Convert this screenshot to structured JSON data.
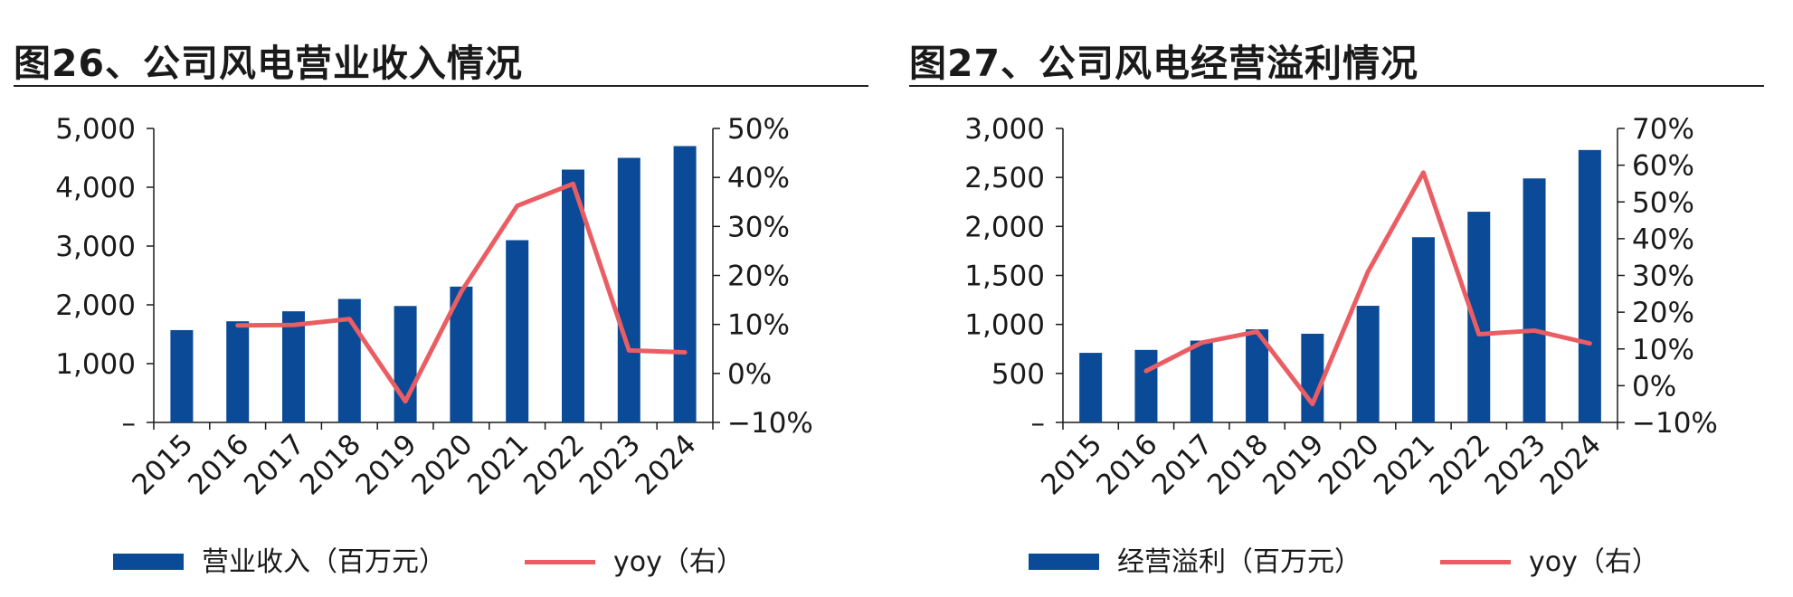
{
  "colors": {
    "bar": "#0a4a97",
    "line": "#ea5d63",
    "axis": "#1a1a1a"
  },
  "chart_data": [
    {
      "type": "bar",
      "title": "图26、公司风电营业收入情况",
      "categories": [
        "2015",
        "2016",
        "2017",
        "2018",
        "2019",
        "2020",
        "2021",
        "2022",
        "2023",
        "2024"
      ],
      "series": [
        {
          "name": "营业收入（百万元）",
          "type": "bar",
          "axis": "left",
          "values": [
            1570,
            1720,
            1890,
            2100,
            1980,
            2310,
            3100,
            4300,
            4500,
            4700
          ]
        },
        {
          "name": "yoy（右）",
          "type": "line",
          "axis": "right",
          "values": [
            null,
            0.098,
            0.099,
            0.111,
            -0.057,
            0.167,
            0.342,
            0.387,
            0.047,
            0.043
          ]
        }
      ],
      "y_left": {
        "range": [
          0,
          5000
        ],
        "ticks": [
          "–",
          "1,000",
          "2,000",
          "3,000",
          "4,000",
          "5,000"
        ]
      },
      "y_right": {
        "range": [
          -0.1,
          0.5
        ],
        "ticks": [
          "−10%",
          "0%",
          "10%",
          "20%",
          "30%",
          "40%",
          "50%"
        ]
      },
      "legend": [
        {
          "label": "营业收入（百万元）",
          "kind": "bar"
        },
        {
          "label": "yoy（右）",
          "kind": "line"
        }
      ],
      "legend_position": "bottom"
    },
    {
      "type": "bar",
      "title": "图27、公司风电经营溢利情况",
      "categories": [
        "2015",
        "2016",
        "2017",
        "2018",
        "2019",
        "2020",
        "2021",
        "2022",
        "2023",
        "2024"
      ],
      "series": [
        {
          "name": "经营溢利（百万元）",
          "type": "bar",
          "axis": "left",
          "values": [
            710,
            740,
            835,
            950,
            905,
            1190,
            1890,
            2150,
            2490,
            2780
          ]
        },
        {
          "name": "yoy（右）",
          "type": "line",
          "axis": "right",
          "values": [
            null,
            0.04,
            0.117,
            0.147,
            -0.05,
            0.31,
            0.58,
            0.14,
            0.15,
            0.115
          ]
        }
      ],
      "y_left": {
        "range": [
          0,
          3000
        ],
        "ticks": [
          "–",
          "500",
          "1,000",
          "1,500",
          "2,000",
          "2,500",
          "3,000"
        ]
      },
      "y_right": {
        "range": [
          -0.1,
          0.7
        ],
        "ticks": [
          "−10%",
          "0%",
          "10%",
          "20%",
          "30%",
          "40%",
          "50%",
          "60%",
          "70%"
        ]
      },
      "legend": [
        {
          "label": "经营溢利（百万元）",
          "kind": "bar"
        },
        {
          "label": "yoy（右）",
          "kind": "line"
        }
      ],
      "legend_position": "bottom"
    }
  ]
}
